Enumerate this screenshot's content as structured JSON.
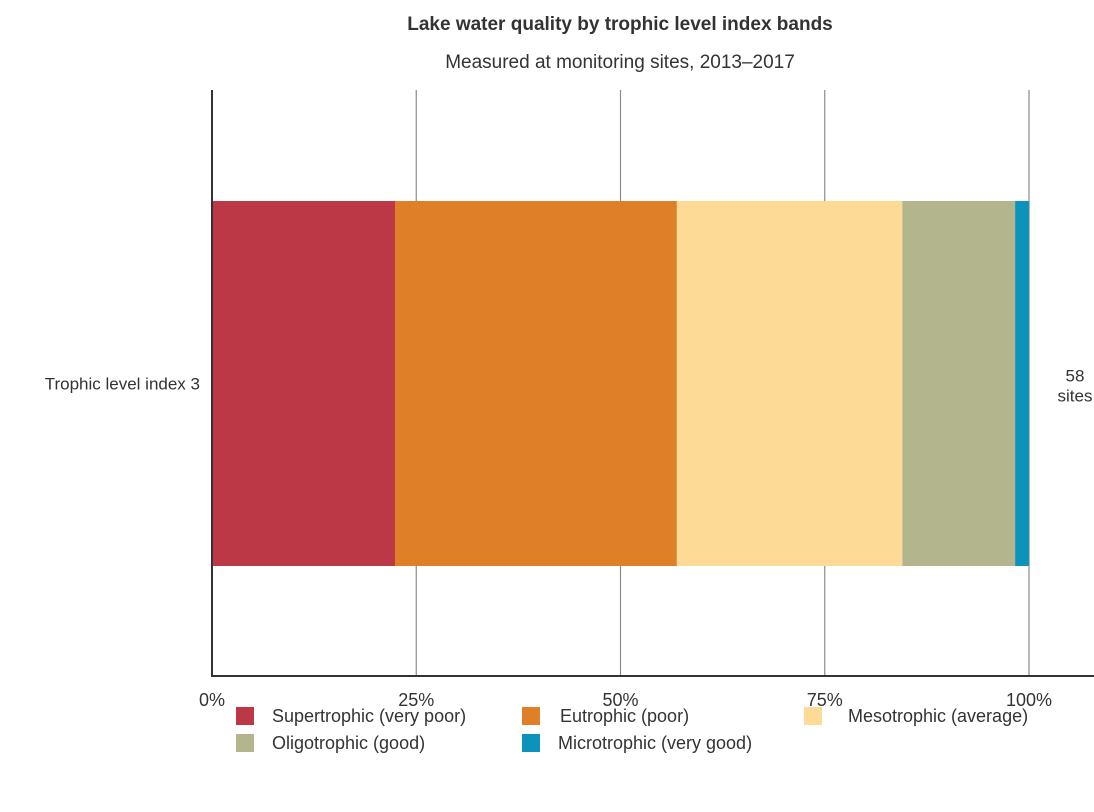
{
  "chart_data": {
    "type": "bar",
    "orientation": "horizontal",
    "stacked": true,
    "title": "Lake water quality by trophic level index bands",
    "subtitle": "Measured at monitoring sites, 2013–2017",
    "categories": [
      "Trophic level index 3"
    ],
    "category_annotations": [
      [
        "58",
        "sites"
      ]
    ],
    "series": [
      {
        "name": "Supertrophic (very poor)",
        "values": [
          22.4
        ],
        "color": "#bc3847"
      },
      {
        "name": "Eutrophic (poor)",
        "values": [
          34.5
        ],
        "color": "#df8029"
      },
      {
        "name": "Mesotrophic (average)",
        "values": [
          27.6
        ],
        "color": "#fddb97"
      },
      {
        "name": "Oligotrophic (good)",
        "values": [
          13.8
        ],
        "color": "#b3b58c"
      },
      {
        "name": "Microtrophic (very good)",
        "values": [
          1.7
        ],
        "color": "#0b93bb"
      }
    ],
    "xlim": [
      0,
      100
    ],
    "xticks": [
      0,
      25,
      50,
      75,
      100
    ],
    "tick_labels": [
      "0%",
      "25%",
      "50%",
      "75%",
      "100%"
    ],
    "grid": true,
    "legend_placement": "bottom"
  }
}
